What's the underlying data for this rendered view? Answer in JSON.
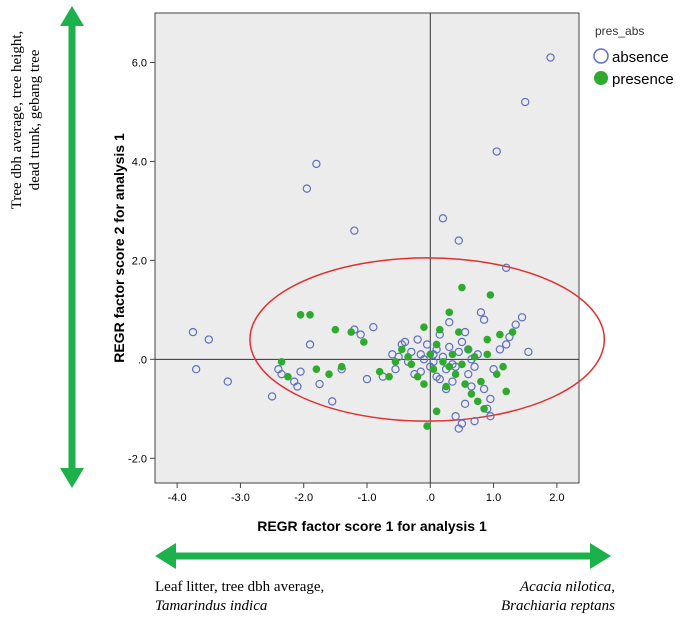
{
  "chart_data": {
    "type": "scatter",
    "xlabel": "REGR factor score   1 for analysis 1",
    "ylabel": "REGR factor score   2 for analysis 1",
    "xlim": [
      -4.35,
      2.35
    ],
    "ylim": [
      -2.5,
      7.0
    ],
    "x_ticks": [
      -4.0,
      -3.0,
      -2.0,
      -1.0,
      0.0,
      1.0,
      2.0
    ],
    "x_tick_labels": [
      "-4.0",
      "-3.0",
      "-2.0",
      "-1.0",
      ".0",
      "1.0",
      "2.0"
    ],
    "y_ticks": [
      -2.0,
      0.0,
      2.0,
      4.0,
      6.0
    ],
    "y_tick_labels": [
      "-2.0",
      ".0",
      "2.0",
      "4.0",
      "6.0"
    ],
    "reference_lines": {
      "x": 0,
      "y": 0
    },
    "legend": {
      "title": "pres_abs",
      "position": "top-right",
      "entries": [
        "absence",
        "presence"
      ]
    },
    "colors": {
      "absence": "#5f6fc0",
      "presence": "#2eaa2e",
      "ellipse": "#e03030",
      "plot_bg": "#ececec",
      "arrow": "#1db14b"
    },
    "ellipse": {
      "cx": -0.05,
      "cy": 0.4,
      "rx": 2.8,
      "ry": 1.65
    },
    "series": [
      {
        "name": "absence",
        "marker": "hollow-circle",
        "points": [
          [
            1.9,
            6.1
          ],
          [
            1.5,
            5.2
          ],
          [
            1.05,
            4.2
          ],
          [
            -1.8,
            3.95
          ],
          [
            -1.95,
            3.45
          ],
          [
            0.2,
            2.85
          ],
          [
            -1.2,
            2.6
          ],
          [
            0.45,
            2.4
          ],
          [
            1.2,
            1.85
          ],
          [
            -3.75,
            0.55
          ],
          [
            -3.5,
            0.4
          ],
          [
            -3.7,
            -0.2
          ],
          [
            -3.2,
            -0.45
          ],
          [
            -2.5,
            -0.75
          ],
          [
            -2.4,
            -0.2
          ],
          [
            -2.35,
            -0.3
          ],
          [
            -2.15,
            -0.45
          ],
          [
            -2.1,
            -0.55
          ],
          [
            -2.05,
            -0.25
          ],
          [
            -1.9,
            0.3
          ],
          [
            -1.75,
            -0.5
          ],
          [
            -1.55,
            -0.85
          ],
          [
            -1.4,
            -0.2
          ],
          [
            -1.2,
            0.6
          ],
          [
            -1.1,
            0.5
          ],
          [
            -1.0,
            -0.4
          ],
          [
            -0.9,
            0.65
          ],
          [
            -0.75,
            -0.35
          ],
          [
            -0.6,
            0.1
          ],
          [
            -0.55,
            -0.2
          ],
          [
            -0.5,
            0.05
          ],
          [
            -0.4,
            0.35
          ],
          [
            -0.35,
            -0.05
          ],
          [
            -0.3,
            0.15
          ],
          [
            -0.2,
            0.4
          ],
          [
            -0.15,
            -0.25
          ],
          [
            -0.1,
            0.0
          ],
          [
            -0.05,
            0.3
          ],
          [
            0.0,
            -0.15
          ],
          [
            0.05,
            0.1
          ],
          [
            0.1,
            -0.35
          ],
          [
            0.15,
            0.5
          ],
          [
            0.2,
            0.05
          ],
          [
            0.25,
            -0.2
          ],
          [
            0.3,
            0.25
          ],
          [
            0.35,
            -0.45
          ],
          [
            0.4,
            -1.15
          ],
          [
            0.45,
            -1.4
          ],
          [
            0.5,
            -1.3
          ],
          [
            0.55,
            -0.9
          ],
          [
            0.6,
            0.2
          ],
          [
            0.65,
            -0.55
          ],
          [
            0.7,
            -1.25
          ],
          [
            0.75,
            0.1
          ],
          [
            0.8,
            0.95
          ],
          [
            0.85,
            0.8
          ],
          [
            0.9,
            -1.0
          ],
          [
            0.95,
            -1.15
          ],
          [
            1.0,
            -0.2
          ],
          [
            1.1,
            0.2
          ],
          [
            1.2,
            0.3
          ],
          [
            1.25,
            0.45
          ],
          [
            1.35,
            0.7
          ],
          [
            1.45,
            0.85
          ],
          [
            1.55,
            0.15
          ],
          [
            0.3,
            0.75
          ],
          [
            0.55,
            0.55
          ],
          [
            0.05,
            -0.05
          ],
          [
            0.35,
            -0.1
          ],
          [
            0.6,
            -0.3
          ],
          [
            -0.25,
            -0.3
          ],
          [
            0.15,
            -0.4
          ],
          [
            0.45,
            0.15
          ],
          [
            0.7,
            -0.15
          ],
          [
            0.1,
            0.2
          ],
          [
            -0.45,
            0.3
          ],
          [
            0.5,
            0.35
          ],
          [
            0.25,
            -0.6
          ],
          [
            0.85,
            -0.6
          ],
          [
            0.95,
            -0.8
          ],
          [
            0.4,
            -0.15
          ],
          [
            -0.15,
            0.1
          ],
          [
            0.65,
            0.0
          ]
        ]
      },
      {
        "name": "presence",
        "marker": "filled-circle",
        "points": [
          [
            0.5,
            1.45
          ],
          [
            0.95,
            1.3
          ],
          [
            0.3,
            0.95
          ],
          [
            -2.05,
            0.9
          ],
          [
            -1.9,
            0.9
          ],
          [
            -1.5,
            0.6
          ],
          [
            -1.25,
            0.55
          ],
          [
            -1.05,
            0.35
          ],
          [
            -0.1,
            0.65
          ],
          [
            0.15,
            0.6
          ],
          [
            0.45,
            0.55
          ],
          [
            0.9,
            0.4
          ],
          [
            1.1,
            0.5
          ],
          [
            1.3,
            0.55
          ],
          [
            -2.35,
            -0.05
          ],
          [
            -2.25,
            -0.35
          ],
          [
            -1.8,
            -0.2
          ],
          [
            -1.6,
            -0.3
          ],
          [
            -1.4,
            -0.15
          ],
          [
            -0.8,
            -0.25
          ],
          [
            -0.65,
            -0.35
          ],
          [
            -0.55,
            -0.05
          ],
          [
            -0.45,
            0.2
          ],
          [
            -0.3,
            -0.1
          ],
          [
            -0.2,
            -0.35
          ],
          [
            -0.1,
            -0.5
          ],
          [
            0.0,
            0.1
          ],
          [
            0.05,
            -0.2
          ],
          [
            0.1,
            0.3
          ],
          [
            0.2,
            -0.05
          ],
          [
            0.25,
            -0.55
          ],
          [
            0.35,
            0.1
          ],
          [
            0.4,
            -0.3
          ],
          [
            0.5,
            -0.1
          ],
          [
            0.55,
            -0.5
          ],
          [
            0.6,
            0.2
          ],
          [
            0.65,
            -0.7
          ],
          [
            0.75,
            -0.85
          ],
          [
            0.8,
            -0.45
          ],
          [
            0.85,
            -1.0
          ],
          [
            0.9,
            0.1
          ],
          [
            1.05,
            -0.3
          ],
          [
            1.15,
            -0.15
          ],
          [
            1.2,
            -0.65
          ],
          [
            -0.05,
            -1.35
          ],
          [
            0.1,
            -1.05
          ],
          [
            -0.35,
            0.05
          ],
          [
            0.3,
            -0.15
          ],
          [
            0.7,
            0.05
          ]
        ]
      }
    ]
  },
  "axis_captions": {
    "y_lines": [
      "Tree dbh average, tree height,",
      "dead trunk, gebang tree"
    ],
    "x_left_line1": "Leaf litter, tree dbh average,",
    "x_left_line2": "Tamarindus indica",
    "x_right_line1": "Acacia nilotica,",
    "x_right_line2": "Brachiaria reptans"
  }
}
